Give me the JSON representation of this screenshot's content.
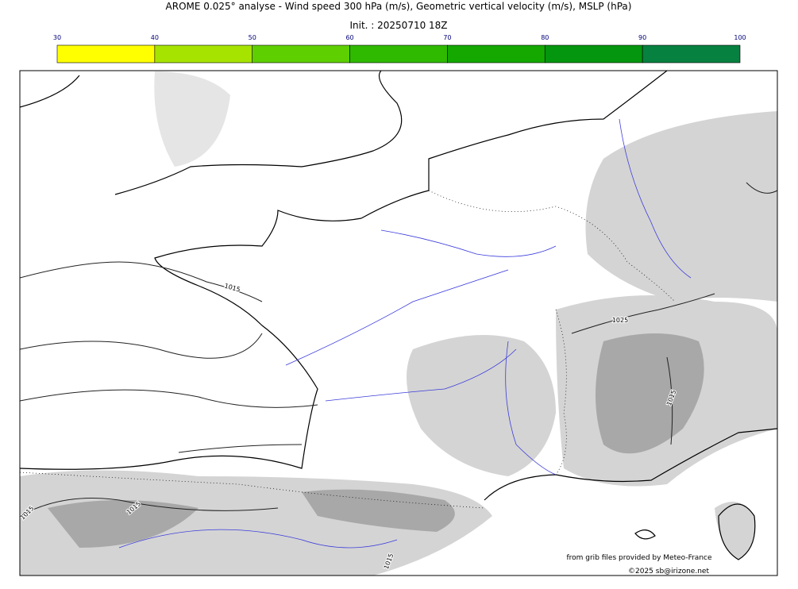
{
  "header": {
    "title": "AROME 0.025° analyse - Wind speed 300 hPa (m/s), Geometric vertical velocity (m/s), MSLP (hPa)",
    "subtitle": "Init. : 20250710 18Z"
  },
  "colorbar": {
    "ticks": [
      30,
      40,
      50,
      60,
      70,
      80,
      90,
      100
    ],
    "colors": [
      "#ffff00",
      "#a6e400",
      "#5ecf00",
      "#2fba00",
      "#14a800",
      "#04960f",
      "#07813f",
      "#077049"
    ]
  },
  "map_labels": [
    "1015",
    "1025",
    "1015",
    "1015",
    "1015",
    "1015"
  ],
  "credits": {
    "source": "from grib files provided by Meteo-France",
    "copyright": "©2025 sb@irizone.net"
  }
}
